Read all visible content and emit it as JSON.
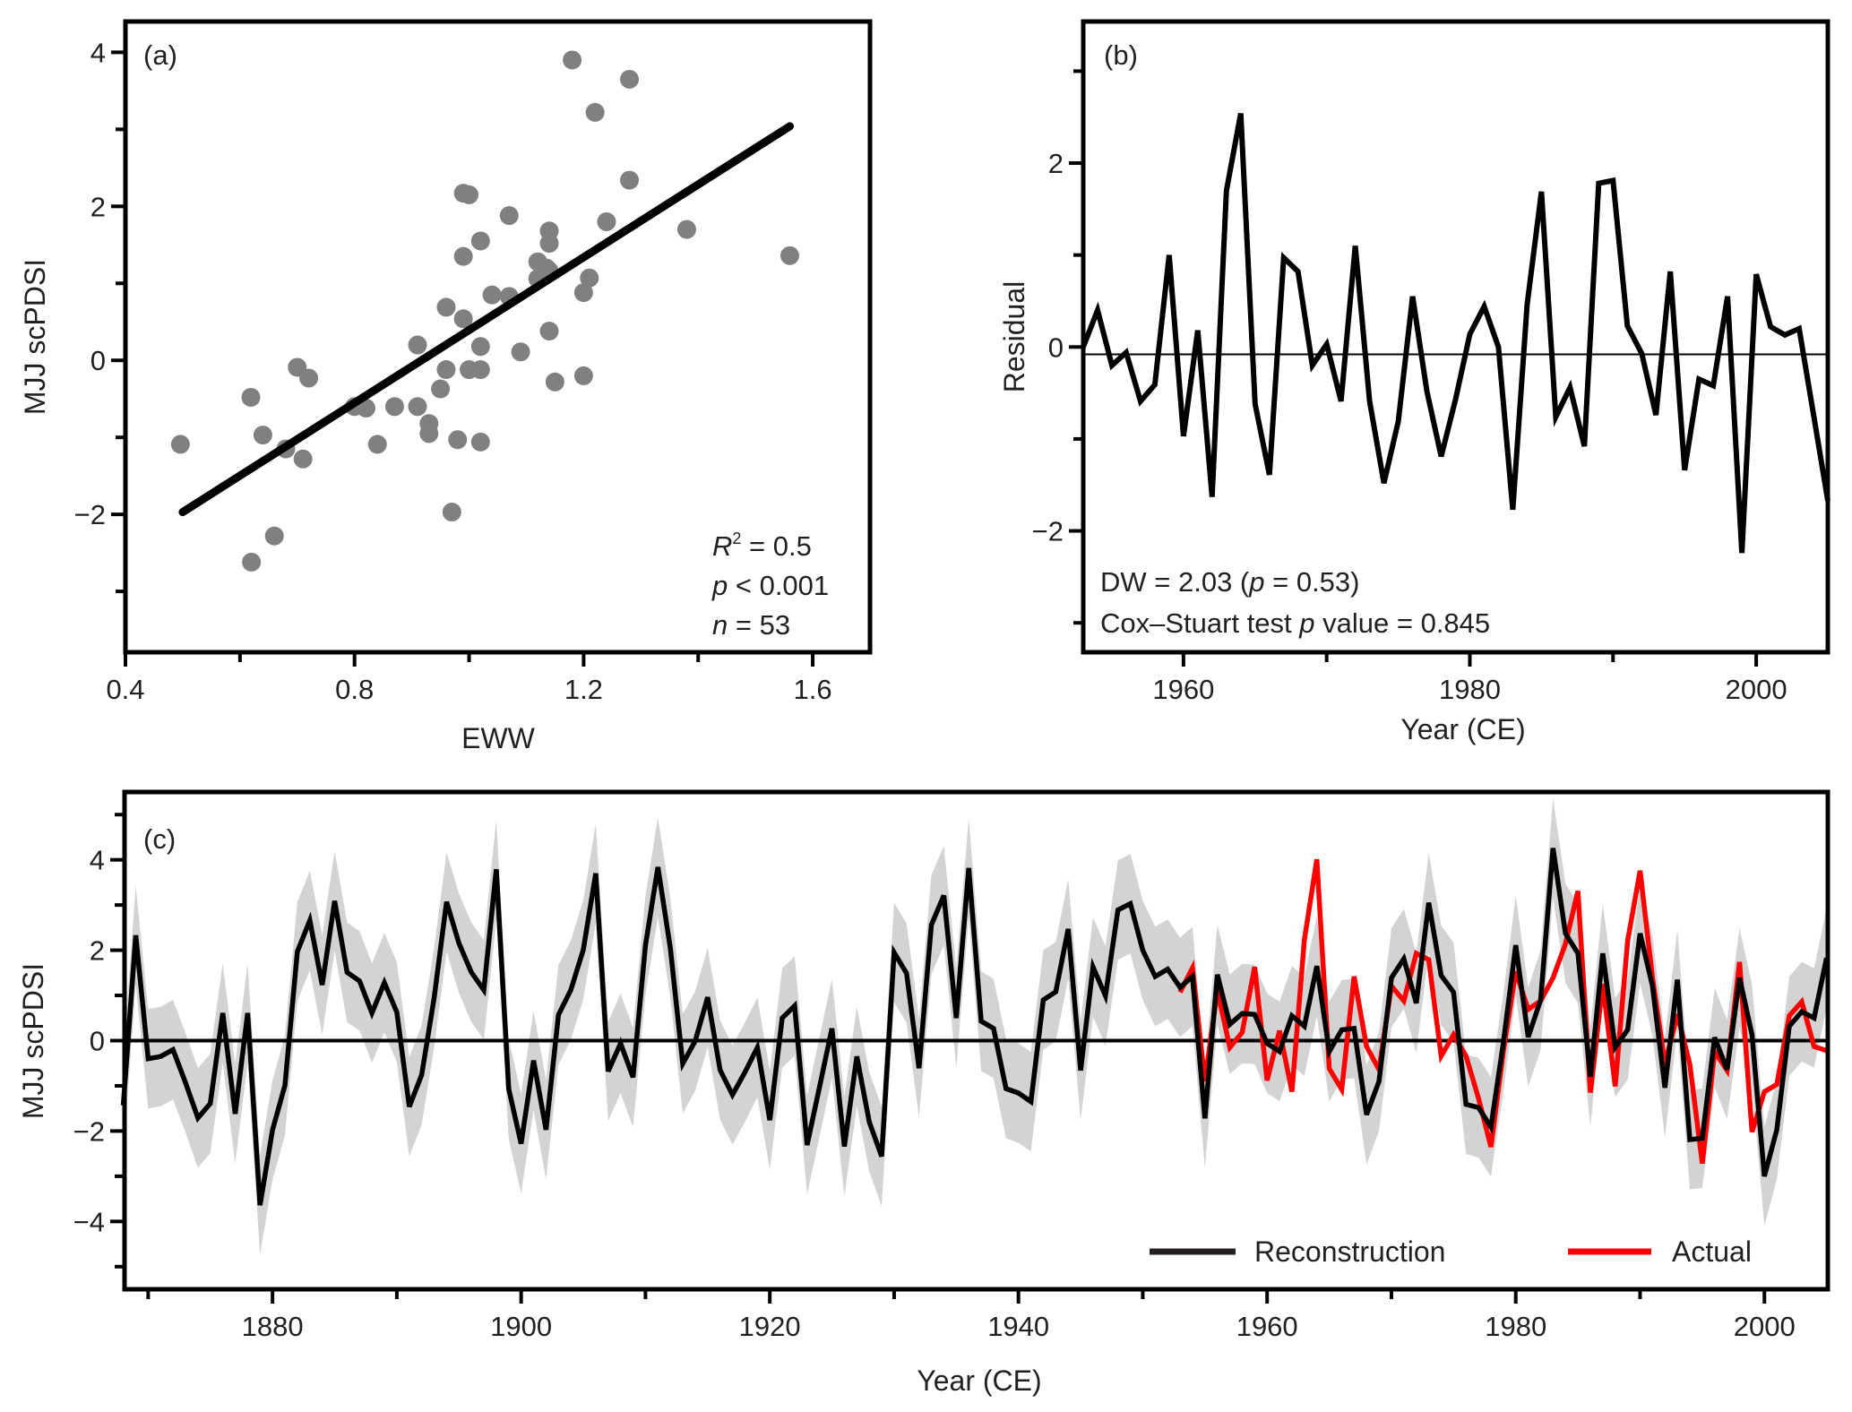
{
  "chart_data": [
    {
      "id": "a",
      "type": "scatter",
      "panel_label": "(a)",
      "xlabel": "EWW",
      "ylabel": "MJJ scPDSI",
      "xlim": [
        0.4,
        1.7
      ],
      "ylim": [
        -3.79,
        4.4
      ],
      "xticks": [
        0.4,
        0.8,
        1.2,
        1.6
      ],
      "xtick_labels": [
        "0.4",
        "0.8",
        "1.2",
        "1.6"
      ],
      "x_minor_ticks": [
        0.6,
        1.0,
        1.4
      ],
      "yticks": [
        -2,
        0,
        2,
        4
      ],
      "ytick_labels": [
        "−2",
        "0",
        "2",
        "4"
      ],
      "y_minor_ticks": [
        -3,
        -1,
        1,
        3
      ],
      "point_color": "#808080",
      "points": [
        [
          0.496,
          -1.09
        ],
        [
          0.619,
          -0.48
        ],
        [
          0.64,
          -0.97
        ],
        [
          0.68,
          -1.15
        ],
        [
          0.7,
          -0.09
        ],
        [
          0.72,
          -0.23
        ],
        [
          0.71,
          -1.28
        ],
        [
          0.66,
          -2.28
        ],
        [
          0.62,
          -2.62
        ],
        [
          0.8,
          -0.6
        ],
        [
          0.82,
          -0.62
        ],
        [
          0.84,
          -1.09
        ],
        [
          0.87,
          -0.6
        ],
        [
          0.91,
          0.2
        ],
        [
          0.91,
          -0.6
        ],
        [
          0.93,
          -0.82
        ],
        [
          0.93,
          -0.95
        ],
        [
          0.95,
          -0.37
        ],
        [
          0.96,
          -0.12
        ],
        [
          0.96,
          0.69
        ],
        [
          0.97,
          -1.97
        ],
        [
          0.98,
          -1.03
        ],
        [
          0.99,
          1.35
        ],
        [
          0.99,
          2.17
        ],
        [
          1.0,
          2.15
        ],
        [
          0.99,
          0.54
        ],
        [
          1.0,
          -0.12
        ],
        [
          1.02,
          1.55
        ],
        [
          1.02,
          -0.12
        ],
        [
          1.02,
          0.18
        ],
        [
          1.02,
          -1.06
        ],
        [
          1.04,
          0.85
        ],
        [
          1.07,
          1.88
        ],
        [
          1.07,
          0.83
        ],
        [
          1.09,
          0.11
        ],
        [
          1.12,
          1.06
        ],
        [
          1.12,
          1.28
        ],
        [
          1.14,
          0.38
        ],
        [
          1.14,
          1.68
        ],
        [
          1.14,
          1.52
        ],
        [
          1.14,
          1.16
        ],
        [
          1.15,
          -0.28
        ],
        [
          1.18,
          3.9
        ],
        [
          1.2,
          0.88
        ],
        [
          1.2,
          -0.2
        ],
        [
          1.21,
          1.07
        ],
        [
          1.22,
          3.22
        ],
        [
          1.24,
          1.8
        ],
        [
          1.28,
          2.34
        ],
        [
          1.28,
          3.65
        ],
        [
          1.38,
          1.7
        ],
        [
          1.56,
          1.36
        ],
        [
          1.135,
          1.2
        ]
      ],
      "fit_line": {
        "x": [
          0.5,
          1.56
        ],
        "y": [
          -1.97,
          3.04
        ],
        "color": "#000000"
      },
      "annotations": {
        "r2_symbol": "R",
        "r2_sup": "2",
        "r2_value": " = 0.5",
        "p_symbol": "p",
        "p_value": " < 0.001",
        "n_symbol": "n",
        "n_value": " = 53"
      }
    },
    {
      "id": "b",
      "type": "line",
      "panel_label": "(b)",
      "xlabel": "Year (CE)",
      "ylabel": "Residual",
      "xlim": [
        1953,
        2005
      ],
      "ylim": [
        -3.32,
        3.54
      ],
      "xticks": [
        1960,
        1980,
        2000
      ],
      "xtick_labels": [
        "1960",
        "1980",
        "2000"
      ],
      "x_minor_ticks": [
        1970,
        1990
      ],
      "yticks": [
        -2,
        0,
        2
      ],
      "ytick_labels": [
        "−2",
        "0",
        "2"
      ],
      "y_minor_ticks": [
        -3,
        -1,
        1,
        3
      ],
      "reference_line": -0.08,
      "x": [
        1953,
        1954,
        1955,
        1956,
        1957,
        1958,
        1959,
        1960,
        1961,
        1962,
        1963,
        1964,
        1965,
        1966,
        1967,
        1968,
        1969,
        1970,
        1971,
        1972,
        1973,
        1974,
        1975,
        1976,
        1977,
        1978,
        1979,
        1980,
        1981,
        1982,
        1983,
        1984,
        1985,
        1986,
        1987,
        1988,
        1989,
        1990,
        1991,
        1992,
        1993,
        1994,
        1995,
        1996,
        1997,
        1998,
        1999,
        2000,
        2001,
        2002,
        2003,
        2004,
        2005
      ],
      "values": [
        0.0,
        0.4,
        -0.2,
        -0.06,
        -0.59,
        -0.41,
        1.0,
        -0.97,
        0.18,
        -1.63,
        1.7,
        2.54,
        -0.62,
        -1.39,
        0.97,
        0.82,
        -0.2,
        0.03,
        -0.59,
        1.1,
        -0.59,
        -1.48,
        -0.81,
        0.55,
        -0.48,
        -1.19,
        -0.57,
        0.14,
        0.44,
        0.0,
        -1.77,
        0.46,
        1.69,
        -0.76,
        -0.44,
        -1.08,
        1.78,
        1.81,
        0.23,
        -0.07,
        -0.74,
        0.82,
        -1.34,
        -0.35,
        -0.42,
        0.55,
        -2.24,
        0.79,
        0.22,
        0.13,
        0.2,
        -0.73,
        -1.67
      ],
      "annotations": {
        "dw_prefix": "DW = 2.03 (",
        "dw_p": "p",
        "dw_suffix": " = 0.53)",
        "cs_prefix": "Cox–Stuart test ",
        "cs_p": "p",
        "cs_suffix": " value = 0.845"
      }
    },
    {
      "id": "c",
      "type": "line",
      "panel_label": "(c)",
      "xlabel": "Year (CE)",
      "ylabel": "MJJ scPDSI",
      "xlim": [
        1868.1,
        2005.1
      ],
      "ylim": [
        -5.5,
        5.5
      ],
      "xticks": [
        1880,
        1900,
        1920,
        1940,
        1960,
        1980,
        2000
      ],
      "xtick_labels": [
        "1880",
        "1900",
        "1920",
        "1940",
        "1960",
        "1980",
        "2000"
      ],
      "x_minor_ticks": [
        1870,
        1890,
        1910,
        1930,
        1950,
        1970,
        1990
      ],
      "yticks": [
        -4,
        -2,
        0,
        2,
        4
      ],
      "ytick_labels": [
        "−4",
        "−2",
        "0",
        "2",
        "4"
      ],
      "y_minor_ticks": [
        -5,
        -3,
        -1,
        1,
        3,
        5
      ],
      "reference_line": 0,
      "band_halfwidth": 1.1,
      "band_color": "#d3d3d3",
      "legend": {
        "position": "bottom-right"
      },
      "series": [
        {
          "name": "Reconstruction",
          "color": "#000000",
          "x_start": 1868,
          "values": [
            -1.43,
            2.33,
            -0.4,
            -0.35,
            -0.2,
            -0.93,
            -1.71,
            -1.39,
            0.61,
            -1.62,
            0.61,
            -3.64,
            -1.98,
            -0.99,
            1.97,
            2.66,
            1.23,
            3.09,
            1.51,
            1.32,
            0.61,
            1.28,
            0.63,
            -1.46,
            -0.76,
            0.94,
            3.07,
            2.15,
            1.51,
            1.12,
            3.79,
            -1.07,
            -2.28,
            -0.44,
            -1.97,
            0.57,
            1.12,
            2.01,
            3.7,
            -0.68,
            -0.06,
            -0.81,
            2.11,
            3.84,
            2.04,
            -0.51,
            -0.01,
            0.96,
            -0.65,
            -1.2,
            -0.7,
            -0.15,
            -1.76,
            0.5,
            0.77,
            -2.31,
            -1.02,
            0.27,
            -2.34,
            -0.35,
            -1.8,
            -2.56,
            1.95,
            1.49,
            -0.61,
            2.56,
            3.21,
            0.5,
            3.82,
            0.43,
            0.27,
            -1.06,
            -1.16,
            -1.35,
            0.9,
            1.08,
            2.47,
            -0.66,
            1.63,
            0.99,
            2.89,
            3.03,
            2.0,
            1.42,
            1.58,
            1.18,
            1.42,
            -1.72,
            1.46,
            0.36,
            0.6,
            0.58,
            -0.06,
            -0.24,
            0.55,
            0.32,
            1.65,
            -0.24,
            0.24,
            0.27,
            -1.64,
            -0.9,
            1.39,
            1.81,
            0.83,
            3.05,
            1.44,
            1.07,
            -1.41,
            -1.48,
            -1.91,
            -0.06,
            2.11,
            0.08,
            0.9,
            4.26,
            2.37,
            1.93,
            -0.8,
            1.93,
            -0.15,
            0.24,
            2.37,
            1.21,
            -1.04,
            1.35,
            -2.19,
            -2.16,
            0.07,
            -0.64,
            1.39,
            0.13,
            -3.0,
            -1.97,
            0.32,
            0.64,
            0.5,
            1.83
          ]
        },
        {
          "name": "Actual",
          "color": "#ff0000",
          "x_start": 1953,
          "values": [
            1.07,
            1.61,
            -0.9,
            1.11,
            -0.15,
            0.18,
            1.63,
            -0.88,
            0.22,
            -1.13,
            2.23,
            4.01,
            -0.62,
            -1.08,
            1.42,
            -0.13,
            -0.64,
            1.21,
            0.88,
            1.93,
            1.79,
            -0.34,
            0.13,
            -0.34,
            -1.27,
            -2.35,
            -0.24,
            1.53,
            0.69,
            0.88,
            1.39,
            2.14,
            3.31,
            -1.15,
            1.25,
            -1.01,
            2.21,
            3.76,
            1.39,
            -0.52,
            0.58,
            -0.52,
            -2.72,
            -0.24,
            -0.66,
            1.74,
            -2.02,
            -1.13,
            -0.97,
            0.55,
            0.86,
            -0.13,
            -0.22
          ]
        }
      ]
    }
  ]
}
